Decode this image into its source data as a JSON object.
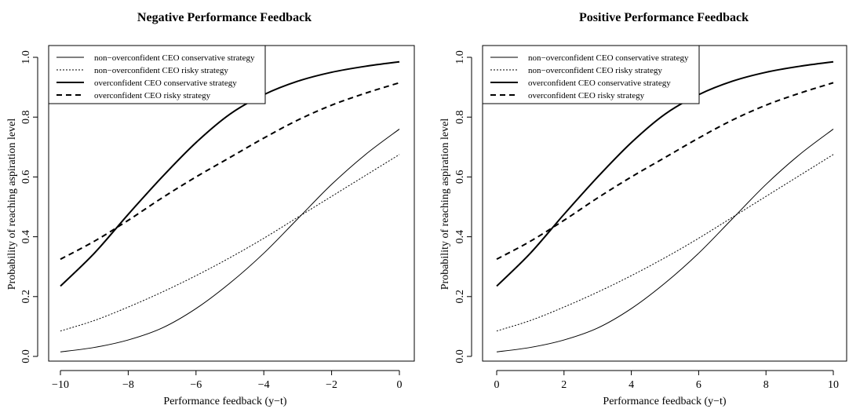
{
  "chart_data": [
    {
      "type": "line",
      "title": "Negative Performance Feedback",
      "xlabel": "Performance feedback (y−t)",
      "ylabel": "Probability of reaching aspiration level",
      "xlim": [
        -10,
        0
      ],
      "ylim": [
        0,
        1
      ],
      "xticks": [
        "−10",
        "−8",
        "−6",
        "−4",
        "−2",
        "0"
      ],
      "xtick_values": [
        -10,
        -8,
        -6,
        -4,
        -2,
        0
      ],
      "yticks": [
        "0.0",
        "0.2",
        "0.4",
        "0.6",
        "0.8",
        "1.0"
      ],
      "ytick_values": [
        0,
        0.2,
        0.4,
        0.6,
        0.8,
        1.0
      ],
      "grid": false,
      "legend_position": "top-left",
      "x": [
        -10,
        -9,
        -8,
        -7,
        -6,
        -5,
        -4,
        -3,
        -2,
        -1,
        0
      ],
      "series": [
        {
          "name": "non−overconfident CEO conservative strategy",
          "style": "thin-solid",
          "values": [
            0.015,
            0.03,
            0.055,
            0.095,
            0.16,
            0.245,
            0.345,
            0.46,
            0.575,
            0.675,
            0.76
          ]
        },
        {
          "name": "non−overconfident CEO risky strategy",
          "style": "thin-dotted",
          "values": [
            0.085,
            0.12,
            0.165,
            0.215,
            0.27,
            0.33,
            0.395,
            0.465,
            0.535,
            0.605,
            0.675
          ]
        },
        {
          "name": "overconfident CEO conservative strategy",
          "style": "thick-solid",
          "values": [
            0.235,
            0.345,
            0.475,
            0.6,
            0.715,
            0.81,
            0.875,
            0.92,
            0.95,
            0.97,
            0.985
          ]
        },
        {
          "name": "overconfident CEO risky strategy",
          "style": "thick-dashed",
          "values": [
            0.325,
            0.385,
            0.455,
            0.53,
            0.6,
            0.665,
            0.73,
            0.79,
            0.84,
            0.88,
            0.915
          ]
        }
      ]
    },
    {
      "type": "line",
      "title": "Positive Performance Feedback",
      "xlabel": "Performance feedback (y−t)",
      "ylabel": "Probability of reaching aspiration level",
      "xlim": [
        0,
        10
      ],
      "ylim": [
        0,
        1
      ],
      "xticks": [
        "0",
        "2",
        "4",
        "6",
        "8",
        "10"
      ],
      "xtick_values": [
        0,
        2,
        4,
        6,
        8,
        10
      ],
      "yticks": [
        "0.0",
        "0.2",
        "0.4",
        "0.6",
        "0.8",
        "1.0"
      ],
      "ytick_values": [
        0,
        0.2,
        0.4,
        0.6,
        0.8,
        1.0
      ],
      "grid": false,
      "legend_position": "top-left",
      "x": [
        0,
        1,
        2,
        3,
        4,
        5,
        6,
        7,
        8,
        9,
        10
      ],
      "series": [
        {
          "name": "non−overconfident CEO conservative strategy",
          "style": "thin-solid",
          "values": [
            0.015,
            0.03,
            0.055,
            0.095,
            0.16,
            0.245,
            0.345,
            0.46,
            0.575,
            0.675,
            0.76
          ]
        },
        {
          "name": "non−overconfident CEO risky strategy",
          "style": "thin-dotted",
          "values": [
            0.085,
            0.12,
            0.165,
            0.215,
            0.27,
            0.33,
            0.395,
            0.465,
            0.535,
            0.605,
            0.675
          ]
        },
        {
          "name": "overconfident CEO conservative strategy",
          "style": "thick-solid",
          "values": [
            0.235,
            0.345,
            0.475,
            0.6,
            0.715,
            0.81,
            0.875,
            0.92,
            0.95,
            0.97,
            0.985
          ]
        },
        {
          "name": "overconfident CEO risky strategy",
          "style": "thick-dashed",
          "values": [
            0.325,
            0.385,
            0.455,
            0.53,
            0.6,
            0.665,
            0.73,
            0.79,
            0.84,
            0.88,
            0.915
          ]
        }
      ]
    }
  ]
}
